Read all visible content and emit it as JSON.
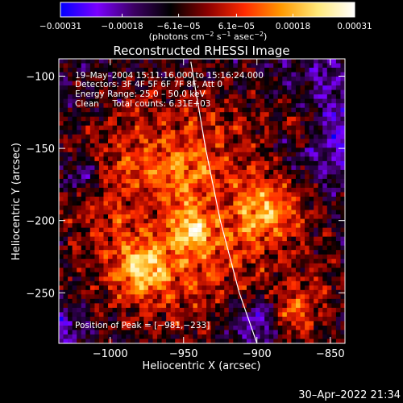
{
  "chart_data": {
    "type": "heatmap",
    "title": "Reconstructed RHESSI Image",
    "xlabel": "Heliocentric X (arcsec)",
    "ylabel": "Heliocentric Y (arcsec)",
    "xlim": [
      -1035,
      -840
    ],
    "ylim": [
      -285,
      -88
    ],
    "x_ticks": [
      -1000,
      -950,
      -900,
      -850
    ],
    "x_tick_labels": [
      "−1000",
      "−950",
      "−900",
      "−850"
    ],
    "y_ticks": [
      -100,
      -150,
      -200,
      -250
    ],
    "y_tick_labels": [
      "−100",
      "−150",
      "−200",
      "−250"
    ],
    "colorbar": {
      "range": [
        -0.00031,
        0.00031
      ],
      "ticks": [
        -0.00031,
        -0.00018,
        -6.1e-05,
        6.1e-05,
        0.00018,
        0.00031
      ],
      "tick_labels": [
        "−0.00031",
        "−0.00018",
        "−6.1e−05",
        "6.1e−05",
        "0.00018",
        "0.00031"
      ],
      "colors": [
        "#0000ff",
        "#7a00ff",
        "#3c0063",
        "#000000",
        "#8b0000",
        "#ff2a00",
        "#ff9900",
        "#ffe97a",
        "#ffffff"
      ]
    },
    "units_label": {
      "prefix": "(photons cm",
      "sup1": "−2",
      "mid1": " s",
      "sup2": "−1",
      "mid2": " asec",
      "sup3": "−2",
      "suffix": ")"
    },
    "info_lines": [
      "19–May–2004 15:11:16.000 to 15:16:24.000",
      "Detectors: 3F 4F 5F 6F 7F 8F, Att 0",
      "Energy Range: 25.0 – 50.0 keV",
      "Clean     Total counts: 6.31E+03"
    ],
    "peak_label": "Position of Peak = [−981,−233]",
    "peak": [
      -981,
      -233
    ],
    "limb": [
      [
        -945,
        -90
      ],
      [
        -935,
        -150
      ],
      [
        -925,
        -200
      ],
      [
        -912,
        -250
      ],
      [
        -900,
        -285
      ]
    ],
    "grid": false
  },
  "timestamp": "30–Apr–2022 21:34",
  "colors": {
    "background": "#000000",
    "foreground": "#ffffff",
    "limb": "#ffffff"
  }
}
